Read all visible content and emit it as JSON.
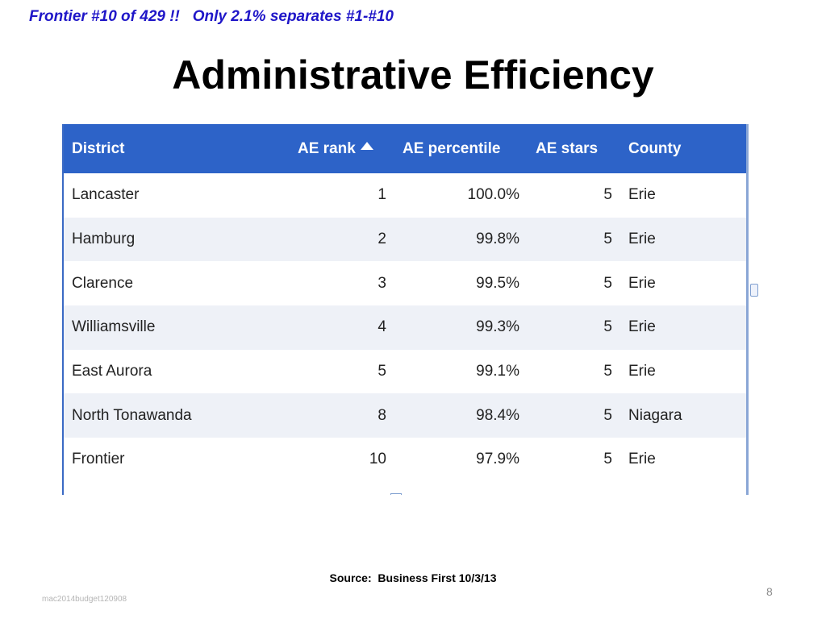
{
  "slide": {
    "subtitle": "Frontier #10 of 429 !!   Only 2.1% separates #1-#10",
    "title": "Administrative Efficiency",
    "source": "Source:  Business First 10/3/13",
    "footer_id": "mac2014budget120908",
    "page_number": "8"
  },
  "table": {
    "headers": {
      "district": "District",
      "ae_rank": "AE rank",
      "ae_percentile": "AE percentile",
      "ae_stars": "AE stars",
      "county": "County"
    },
    "sort_icon": "sort-ascending-icon",
    "rows": [
      {
        "district": "Lancaster",
        "rank": "1",
        "percentile": "100.0%",
        "stars": "5",
        "county": "Erie"
      },
      {
        "district": "Hamburg",
        "rank": "2",
        "percentile": "99.8%",
        "stars": "5",
        "county": "Erie"
      },
      {
        "district": "Clarence",
        "rank": "3",
        "percentile": "99.5%",
        "stars": "5",
        "county": "Erie"
      },
      {
        "district": "Williamsville",
        "rank": "4",
        "percentile": "99.3%",
        "stars": "5",
        "county": "Erie"
      },
      {
        "district": "East Aurora",
        "rank": "5",
        "percentile": "99.1%",
        "stars": "5",
        "county": "Erie"
      },
      {
        "district": "North Tonawanda",
        "rank": "8",
        "percentile": "98.4%",
        "stars": "5",
        "county": "Niagara"
      },
      {
        "district": "Frontier",
        "rank": "10",
        "percentile": "97.9%",
        "stars": "5",
        "county": "Erie"
      }
    ]
  },
  "colors": {
    "subtitle": "#1f16c8",
    "header_bg": "#2d63c8",
    "row_stripe": "#eef1f7"
  }
}
